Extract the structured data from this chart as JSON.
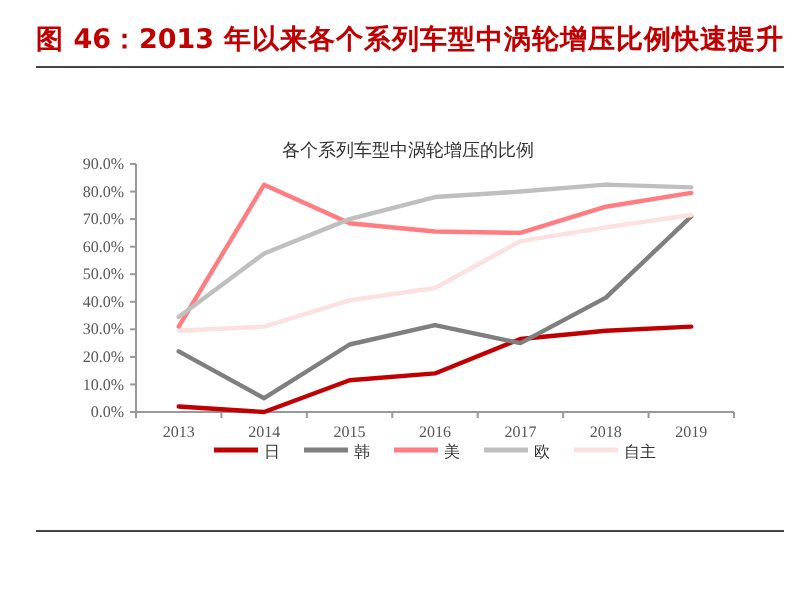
{
  "chart_data": {
    "type": "line",
    "title": "图 46：2013 年以来各个系列车型中涡轮增压比例快速提升",
    "subtitle": "各个系列车型中涡轮增压的比例",
    "categories": [
      "2013",
      "2014",
      "2015",
      "2016",
      "2017",
      "2018",
      "2019"
    ],
    "series": [
      {
        "name": "日",
        "color": "#c00000",
        "values": [
          2,
          0,
          11.5,
          14,
          26.5,
          29.5,
          31
        ]
      },
      {
        "name": "韩",
        "color": "#7f7f7f",
        "values": [
          22,
          5,
          24.5,
          31.5,
          25,
          41.5,
          71
        ]
      },
      {
        "name": "美",
        "color": "#ff7c80",
        "values": [
          31,
          82.5,
          68.5,
          65.5,
          65,
          74.5,
          79.5
        ]
      },
      {
        "name": "欧",
        "color": "#bfbfbf",
        "values": [
          34.5,
          57.5,
          70,
          78,
          80,
          82.5,
          81.5
        ]
      },
      {
        "name": "自主",
        "color": "#fde0e0",
        "values": [
          29.5,
          31,
          40.5,
          45,
          62,
          67,
          71.5
        ]
      }
    ],
    "ylim": [
      0,
      90
    ],
    "yticks": [
      {
        "value": 0,
        "label": "0.0%"
      },
      {
        "value": 10,
        "label": "10.0%"
      },
      {
        "value": 20,
        "label": "20.0%"
      },
      {
        "value": 30,
        "label": "30.0%"
      },
      {
        "value": 40,
        "label": "40.0%"
      },
      {
        "value": 50,
        "label": "50.0%"
      },
      {
        "value": 60,
        "label": "60.0%"
      },
      {
        "value": 70,
        "label": "70.0%"
      },
      {
        "value": 80,
        "label": "80.0%"
      },
      {
        "value": 90,
        "label": "90.0%"
      }
    ],
    "grid": false,
    "legend": "bottom",
    "marker": "none",
    "line_style": "solid"
  }
}
